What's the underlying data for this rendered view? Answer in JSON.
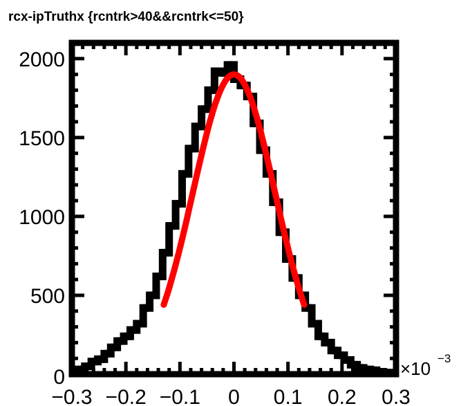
{
  "chart_data": {
    "type": "histogram",
    "title": "rcx-ipTruthx {rcntrk>40&&rcntrk<=50}",
    "xlabel": "",
    "ylabel": "",
    "x_multiplier_label": "×10",
    "x_multiplier_exponent": "−3",
    "xlim": [
      -0.3,
      0.3
    ],
    "ylim": [
      0,
      2100
    ],
    "x_ticks": [
      -0.3,
      -0.2,
      -0.1,
      0,
      0.1,
      0.2,
      0.3
    ],
    "x_tick_labels": [
      "−0.3",
      "−0.2",
      "−0.1",
      "0",
      "0.1",
      "0.2",
      "0.3"
    ],
    "y_ticks": [
      0,
      500,
      1000,
      1500,
      2000
    ],
    "y_tick_labels": [
      "0",
      "500",
      "1000",
      "1500",
      "2000"
    ],
    "bin_width": 0.012,
    "bin_lows": [
      -0.3,
      -0.288,
      -0.276,
      -0.264,
      -0.252,
      -0.24,
      -0.228,
      -0.216,
      -0.204,
      -0.192,
      -0.18,
      -0.168,
      -0.156,
      -0.144,
      -0.132,
      -0.12,
      -0.108,
      -0.096,
      -0.084,
      -0.072,
      -0.06,
      -0.048,
      -0.036,
      -0.024,
      -0.012,
      0.0,
      0.012,
      0.024,
      0.036,
      0.048,
      0.06,
      0.072,
      0.084,
      0.096,
      0.108,
      0.12,
      0.132,
      0.144,
      0.156,
      0.168,
      0.18,
      0.192,
      0.204,
      0.216,
      0.228,
      0.24,
      0.252,
      0.264,
      0.276,
      0.288
    ],
    "counts": [
      20,
      30,
      50,
      80,
      95,
      130,
      170,
      210,
      240,
      280,
      320,
      420,
      500,
      620,
      770,
      940,
      1080,
      1270,
      1430,
      1570,
      1680,
      1800,
      1920,
      1910,
      1960,
      1870,
      1830,
      1760,
      1590,
      1420,
      1270,
      1090,
      900,
      730,
      610,
      500,
      420,
      320,
      240,
      200,
      150,
      120,
      90,
      60,
      40,
      30,
      25,
      15,
      10,
      5
    ],
    "fit": {
      "name": "Gaussian fit",
      "color": "#ff0000",
      "x_range": [
        -0.13,
        0.13
      ],
      "amplitude": 1900,
      "mean": 0.0,
      "sigma": 0.076
    },
    "histogram_color": "#000000",
    "grid": false
  }
}
